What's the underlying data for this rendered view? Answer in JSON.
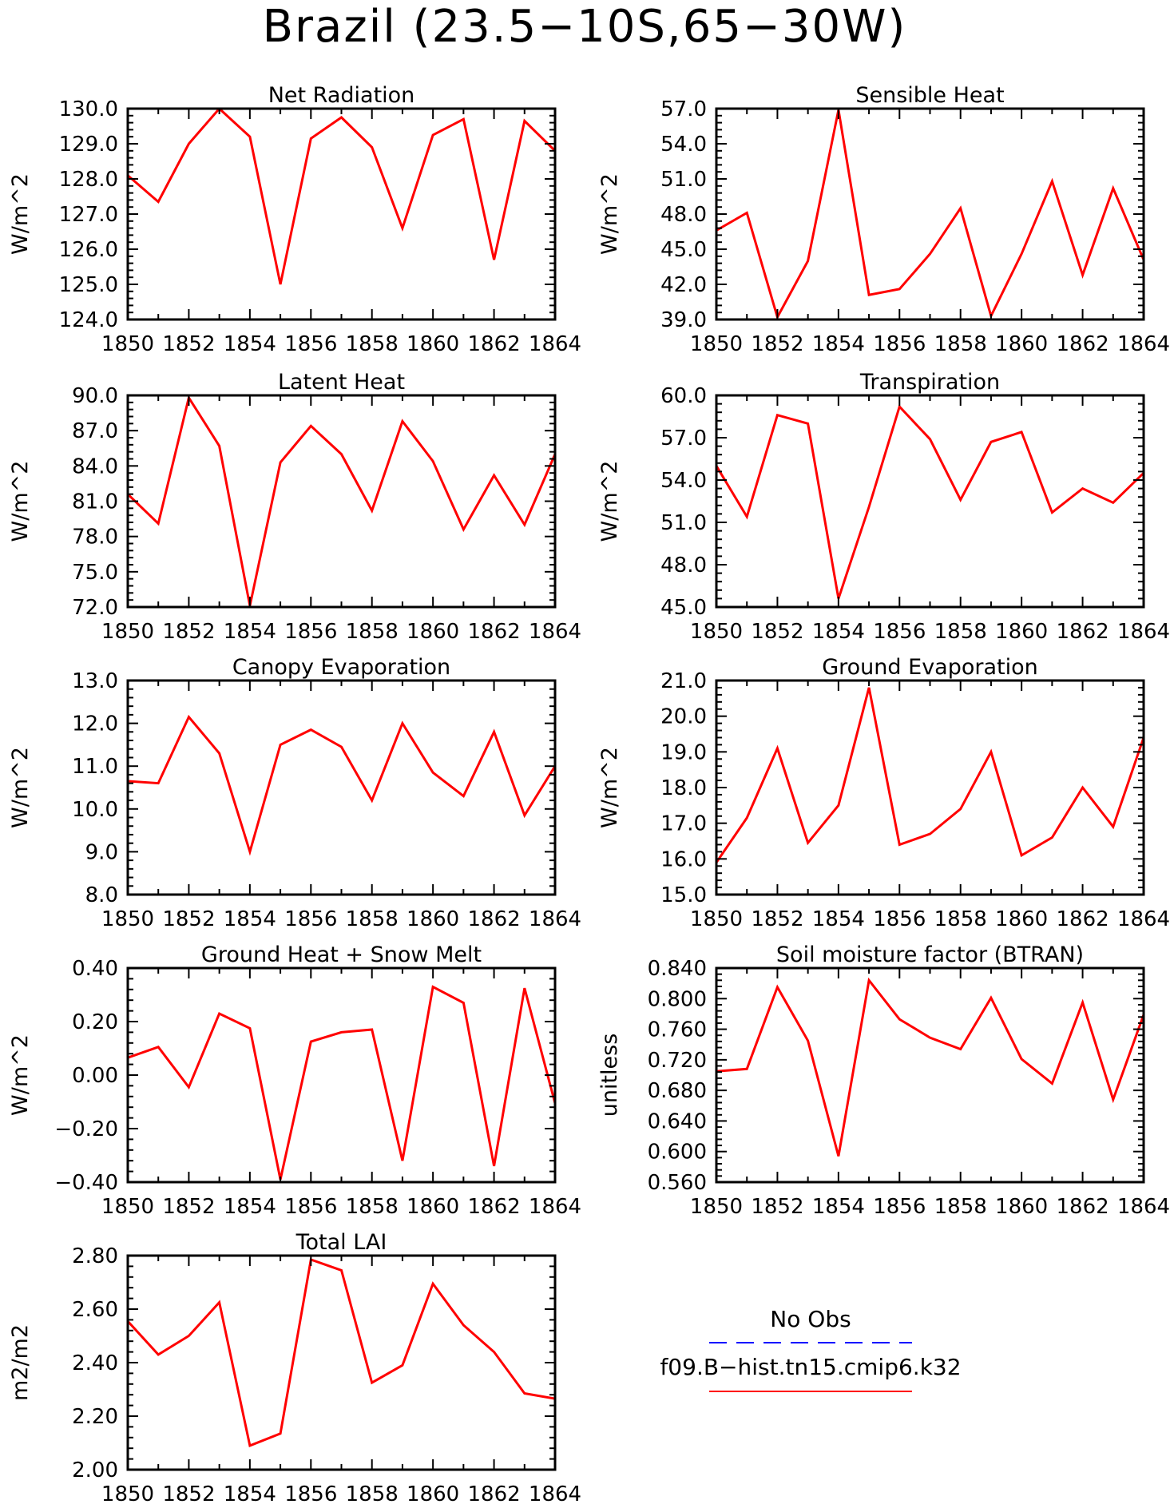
{
  "figure": {
    "title": "Brazil (23.5−10S,65−30W)"
  },
  "colors": {
    "model": "#ff0000",
    "obs": "#0000ff",
    "axes": "#000000"
  },
  "legend": {
    "obs_label": "No Obs",
    "model_label": "f09.B−hist.tn15.cmip6.k32"
  },
  "chart_data": [
    {
      "type": "line",
      "title": "Net Radiation",
      "ylabel": "W/m^2",
      "x": [
        1850,
        1851,
        1852,
        1853,
        1854,
        1855,
        1856,
        1857,
        1858,
        1859,
        1860,
        1861,
        1862,
        1863,
        1864
      ],
      "xlim": [
        1850,
        1864
      ],
      "xticks": [
        1850,
        1852,
        1854,
        1856,
        1858,
        1860,
        1862,
        1864
      ],
      "ylim": [
        124.0,
        130.0
      ],
      "yticks": [
        124.0,
        125.0,
        126.0,
        127.0,
        128.0,
        129.0,
        130.0
      ],
      "ydecimals": 1,
      "series": [
        {
          "values": [
            128.1,
            127.35,
            129.0,
            130.0,
            129.2,
            125.0,
            129.15,
            129.75,
            128.9,
            126.6,
            129.25,
            129.7,
            125.7,
            129.65,
            128.8
          ]
        }
      ]
    },
    {
      "type": "line",
      "title": "Sensible Heat",
      "ylabel": "W/m^2",
      "x": [
        1850,
        1851,
        1852,
        1853,
        1854,
        1855,
        1856,
        1857,
        1858,
        1859,
        1860,
        1861,
        1862,
        1863,
        1864
      ],
      "xlim": [
        1850,
        1864
      ],
      "xticks": [
        1850,
        1852,
        1854,
        1856,
        1858,
        1860,
        1862,
        1864
      ],
      "ylim": [
        39.0,
        57.0
      ],
      "yticks": [
        39.0,
        42.0,
        45.0,
        48.0,
        51.0,
        54.0,
        57.0
      ],
      "ydecimals": 1,
      "series": [
        {
          "values": [
            46.6,
            48.1,
            39.2,
            44.0,
            56.9,
            41.1,
            41.6,
            44.6,
            48.5,
            39.3,
            44.6,
            50.8,
            42.8,
            50.2,
            44.1
          ]
        }
      ]
    },
    {
      "type": "line",
      "title": "Latent Heat",
      "ylabel": "W/m^2",
      "x": [
        1850,
        1851,
        1852,
        1853,
        1854,
        1855,
        1856,
        1857,
        1858,
        1859,
        1860,
        1861,
        1862,
        1863,
        1864
      ],
      "xlim": [
        1850,
        1864
      ],
      "xticks": [
        1850,
        1852,
        1854,
        1856,
        1858,
        1860,
        1862,
        1864
      ],
      "ylim": [
        72.0,
        90.0
      ],
      "yticks": [
        72.0,
        75.0,
        78.0,
        81.0,
        84.0,
        87.0,
        90.0
      ],
      "ydecimals": 1,
      "series": [
        {
          "values": [
            81.6,
            79.1,
            89.8,
            85.7,
            72.1,
            84.3,
            87.4,
            85.0,
            80.2,
            87.8,
            84.4,
            78.6,
            83.2,
            79.0,
            85.0
          ]
        }
      ]
    },
    {
      "type": "line",
      "title": "Transpiration",
      "ylabel": "W/m^2",
      "x": [
        1850,
        1851,
        1852,
        1853,
        1854,
        1855,
        1856,
        1857,
        1858,
        1859,
        1860,
        1861,
        1862,
        1863,
        1864
      ],
      "xlim": [
        1850,
        1864
      ],
      "xticks": [
        1850,
        1852,
        1854,
        1856,
        1858,
        1860,
        1862,
        1864
      ],
      "ylim": [
        45.0,
        60.0
      ],
      "yticks": [
        45.0,
        48.0,
        51.0,
        54.0,
        57.0,
        60.0
      ],
      "ydecimals": 1,
      "series": [
        {
          "values": [
            55.0,
            51.4,
            58.6,
            58.0,
            45.6,
            52.1,
            59.2,
            56.9,
            52.6,
            56.7,
            57.4,
            51.7,
            53.4,
            52.4,
            54.5
          ]
        }
      ]
    },
    {
      "type": "line",
      "title": "Canopy Evaporation",
      "ylabel": "W/m^2",
      "x": [
        1850,
        1851,
        1852,
        1853,
        1854,
        1855,
        1856,
        1857,
        1858,
        1859,
        1860,
        1861,
        1862,
        1863,
        1864
      ],
      "xlim": [
        1850,
        1864
      ],
      "xticks": [
        1850,
        1852,
        1854,
        1856,
        1858,
        1860,
        1862,
        1864
      ],
      "ylim": [
        8.0,
        13.0
      ],
      "yticks": [
        8.0,
        9.0,
        10.0,
        11.0,
        12.0,
        13.0
      ],
      "ydecimals": 1,
      "series": [
        {
          "values": [
            10.65,
            10.6,
            12.15,
            11.3,
            9.0,
            11.5,
            11.85,
            11.45,
            10.2,
            12.0,
            10.85,
            10.3,
            11.8,
            9.85,
            11.0
          ]
        }
      ]
    },
    {
      "type": "line",
      "title": "Ground Evaporation",
      "ylabel": "W/m^2",
      "x": [
        1850,
        1851,
        1852,
        1853,
        1854,
        1855,
        1856,
        1857,
        1858,
        1859,
        1860,
        1861,
        1862,
        1863,
        1864
      ],
      "xlim": [
        1850,
        1864
      ],
      "xticks": [
        1850,
        1852,
        1854,
        1856,
        1858,
        1860,
        1862,
        1864
      ],
      "ylim": [
        15.0,
        21.0
      ],
      "yticks": [
        15.0,
        16.0,
        17.0,
        18.0,
        19.0,
        20.0,
        21.0
      ],
      "ydecimals": 1,
      "series": [
        {
          "values": [
            15.9,
            17.15,
            19.1,
            16.45,
            17.5,
            20.8,
            16.4,
            16.7,
            17.4,
            19.0,
            16.1,
            16.6,
            18.0,
            16.9,
            19.4
          ]
        }
      ]
    },
    {
      "type": "line",
      "title": "Ground Heat + Snow Melt",
      "ylabel": "W/m^2",
      "x": [
        1850,
        1851,
        1852,
        1853,
        1854,
        1855,
        1856,
        1857,
        1858,
        1859,
        1860,
        1861,
        1862,
        1863,
        1864
      ],
      "xlim": [
        1850,
        1864
      ],
      "xticks": [
        1850,
        1852,
        1854,
        1856,
        1858,
        1860,
        1862,
        1864
      ],
      "ylim": [
        -0.4,
        0.4
      ],
      "yticks": [
        -0.4,
        -0.2,
        0.0,
        0.2,
        0.4
      ],
      "ydecimals": 2,
      "series": [
        {
          "values": [
            0.065,
            0.105,
            -0.045,
            0.23,
            0.175,
            -0.39,
            0.125,
            0.16,
            0.17,
            -0.32,
            0.33,
            0.27,
            -0.34,
            0.325,
            -0.105
          ]
        }
      ]
    },
    {
      "type": "line",
      "title": "Soil moisture factor (BTRAN)",
      "ylabel": "unitless",
      "x": [
        1850,
        1851,
        1852,
        1853,
        1854,
        1855,
        1856,
        1857,
        1858,
        1859,
        1860,
        1861,
        1862,
        1863,
        1864
      ],
      "xlim": [
        1850,
        1864
      ],
      "xticks": [
        1850,
        1852,
        1854,
        1856,
        1858,
        1860,
        1862,
        1864
      ],
      "ylim": [
        0.56,
        0.84
      ],
      "yticks": [
        0.56,
        0.6,
        0.64,
        0.68,
        0.72,
        0.76,
        0.8,
        0.84
      ],
      "ydecimals": 3,
      "series": [
        {
          "values": [
            0.705,
            0.708,
            0.815,
            0.745,
            0.594,
            0.824,
            0.773,
            0.749,
            0.734,
            0.801,
            0.721,
            0.689,
            0.795,
            0.668,
            0.779
          ]
        }
      ]
    },
    {
      "type": "line",
      "title": "Total LAI",
      "ylabel": "m2/m2",
      "x": [
        1850,
        1851,
        1852,
        1853,
        1854,
        1855,
        1856,
        1857,
        1858,
        1859,
        1860,
        1861,
        1862,
        1863,
        1864
      ],
      "xlim": [
        1850,
        1864
      ],
      "xticks": [
        1850,
        1852,
        1854,
        1856,
        1858,
        1860,
        1862,
        1864
      ],
      "ylim": [
        2.0,
        2.8
      ],
      "yticks": [
        2.0,
        2.2,
        2.4,
        2.6,
        2.8
      ],
      "ydecimals": 2,
      "series": [
        {
          "values": [
            2.555,
            2.43,
            2.5,
            2.625,
            2.09,
            2.135,
            2.785,
            2.745,
            2.325,
            2.39,
            2.695,
            2.54,
            2.44,
            2.285,
            2.265
          ]
        }
      ]
    }
  ]
}
